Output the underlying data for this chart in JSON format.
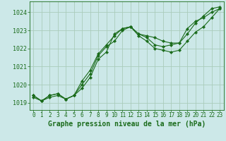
{
  "bg_color": "#cce8e8",
  "grid_color": "#aaccbb",
  "line_color": "#1a6b1a",
  "text_color": "#1a6b1a",
  "title": "Graphe pression niveau de la mer (hPa)",
  "xlim": [
    -0.5,
    23.5
  ],
  "ylim": [
    1018.6,
    1024.6
  ],
  "yticks": [
    1019,
    1020,
    1021,
    1022,
    1023,
    1024
  ],
  "xticks": [
    0,
    1,
    2,
    3,
    4,
    5,
    6,
    7,
    8,
    9,
    10,
    11,
    12,
    13,
    14,
    15,
    16,
    17,
    18,
    19,
    20,
    21,
    22,
    23
  ],
  "line1_x": [
    0,
    1,
    2,
    3,
    4,
    5,
    6,
    7,
    8,
    9,
    10,
    11,
    12,
    13,
    14,
    15,
    16,
    17,
    18,
    19,
    20,
    21,
    22,
    23
  ],
  "line1_y": [
    1019.4,
    1019.1,
    1019.4,
    1019.5,
    1019.2,
    1019.4,
    1019.8,
    1020.4,
    1021.4,
    1021.8,
    1022.8,
    1023.1,
    1023.2,
    1022.8,
    1022.7,
    1022.6,
    1022.4,
    1022.3,
    1022.3,
    1023.1,
    1023.5,
    1023.7,
    1024.0,
    1024.2
  ],
  "line2_x": [
    0,
    1,
    2,
    3,
    4,
    5,
    6,
    7,
    8,
    9,
    10,
    11,
    12,
    13,
    14,
    15,
    16,
    17,
    18,
    19,
    20,
    21,
    22,
    23
  ],
  "line2_y": [
    1019.3,
    1019.1,
    1019.3,
    1019.4,
    1019.2,
    1019.4,
    1020.0,
    1020.6,
    1021.6,
    1022.1,
    1022.4,
    1023.0,
    1023.2,
    1022.7,
    1022.4,
    1022.0,
    1021.9,
    1021.8,
    1021.9,
    1022.4,
    1022.9,
    1023.2,
    1023.7,
    1024.2
  ],
  "line3_x": [
    0,
    1,
    2,
    3,
    4,
    5,
    6,
    7,
    8,
    9,
    10,
    11,
    12,
    13,
    14,
    15,
    16,
    17,
    18,
    19,
    20,
    21,
    22,
    23
  ],
  "line3_y": [
    1019.4,
    1019.1,
    1019.4,
    1019.5,
    1019.2,
    1019.4,
    1020.2,
    1020.8,
    1021.7,
    1022.2,
    1022.7,
    1023.1,
    1023.2,
    1022.8,
    1022.6,
    1022.2,
    1022.1,
    1022.2,
    1022.3,
    1022.8,
    1023.4,
    1023.8,
    1024.2,
    1024.3
  ],
  "marker": "D",
  "marker_size": 2.2,
  "line_width": 0.8,
  "title_fontsize": 7.0,
  "tick_fontsize": 5.5,
  "ytick_fontsize": 6.0
}
